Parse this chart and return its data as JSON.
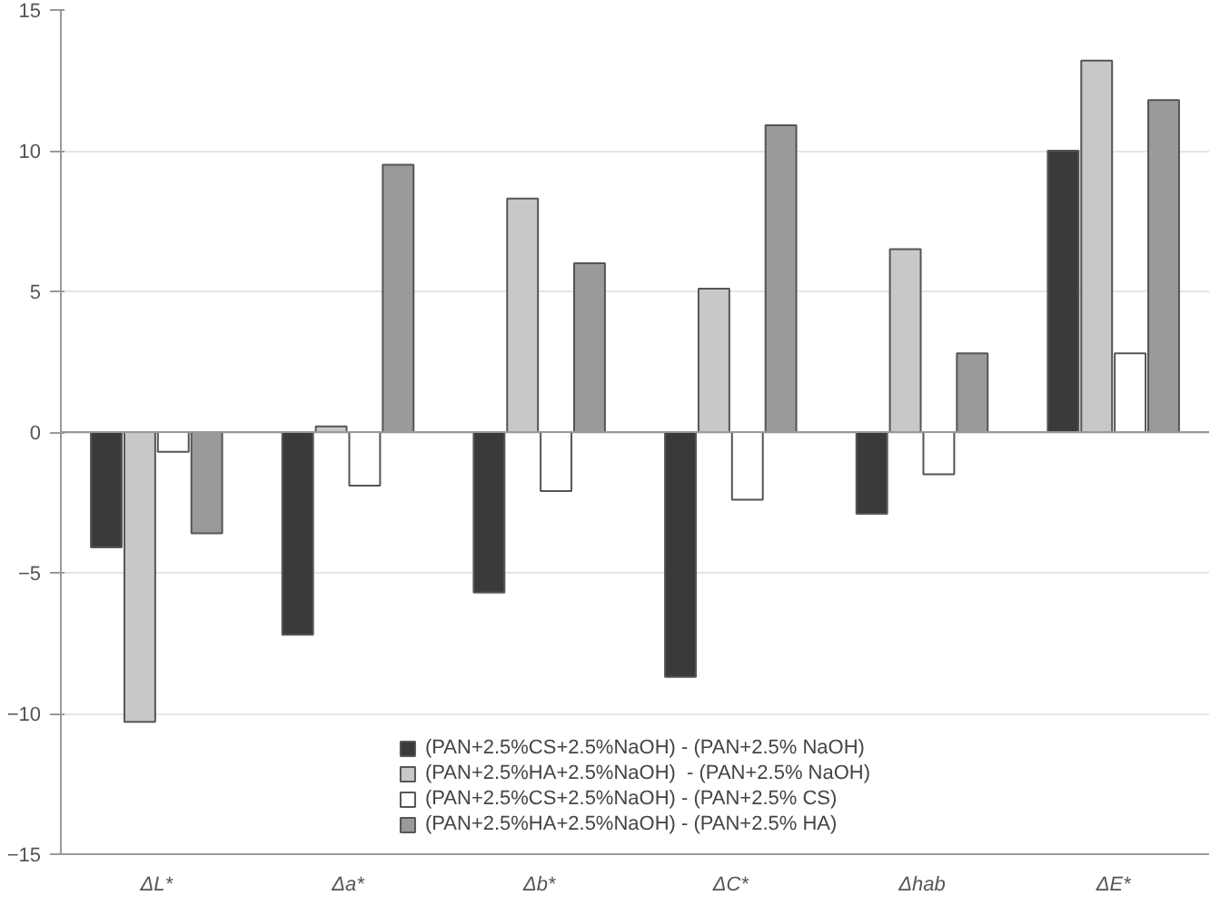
{
  "chart_data": {
    "type": "bar",
    "categories": [
      "ΔL*",
      "Δa*",
      "Δb*",
      "ΔC*",
      "Δhab",
      "ΔE*"
    ],
    "series": [
      {
        "name": "(PAN+2.5%CS+2.5%NaOH) - (PAN+2.5% NaOH)",
        "color": "#3a3a3a",
        "values": [
          -4.1,
          -7.2,
          -5.7,
          -8.7,
          -2.9,
          10.0
        ]
      },
      {
        "name": "(PAN+2.5%HA+2.5%NaOH)  - (PAN+2.5% NaOH)",
        "color": "#c8c8c8",
        "values": [
          -10.3,
          0.2,
          8.3,
          5.1,
          6.5,
          13.2
        ]
      },
      {
        "name": "(PAN+2.5%CS+2.5%NaOH) - (PAN+2.5% CS)",
        "color": "#ffffff",
        "values": [
          -0.7,
          -1.9,
          -2.1,
          -2.4,
          -1.5,
          2.8
        ]
      },
      {
        "name": "(PAN+2.5%HA+2.5%NaOH) - (PAN+2.5% HA)",
        "color": "#9a9a9a",
        "values": [
          -3.6,
          9.5,
          6.0,
          10.9,
          2.8,
          11.8
        ]
      }
    ],
    "ylim": [
      -15,
      15
    ],
    "yticks": [
      -15,
      -10,
      -5,
      0,
      5,
      10,
      15
    ],
    "grid": "y",
    "legend": "bottom"
  }
}
